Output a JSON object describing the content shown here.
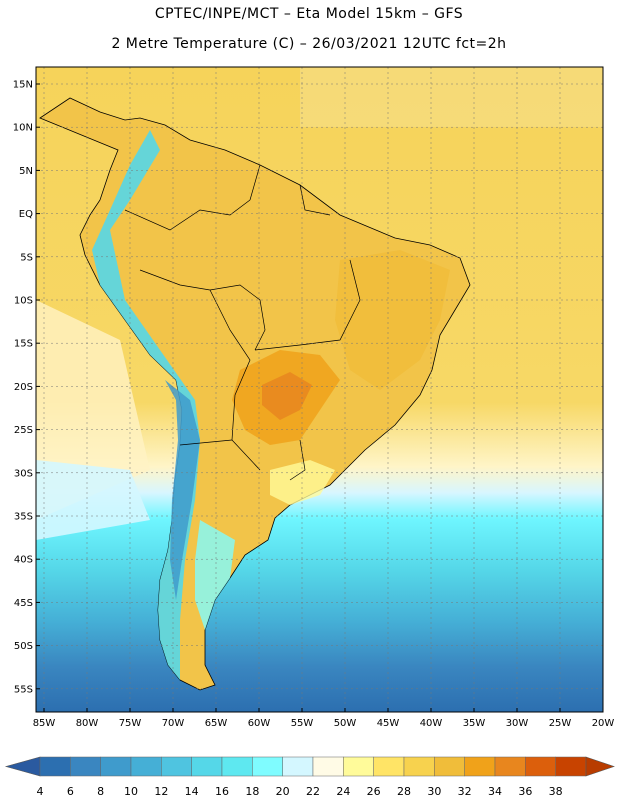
{
  "header": {
    "line1": "CPTEC/INPE/MCT –  Eta Model 15km – GFS",
    "line2": "2 Metre Temperature (C) – 26/03/2021 12UTC fct=2h"
  },
  "axes": {
    "lat_labels": [
      "15N",
      "10N",
      "5N",
      "EQ",
      "5S",
      "10S",
      "15S",
      "20S",
      "25S",
      "30S",
      "35S",
      "40S",
      "45S",
      "50S",
      "55S"
    ],
    "lon_labels": [
      "85W",
      "80W",
      "75W",
      "70W",
      "65W",
      "60W",
      "55W",
      "50W",
      "45W",
      "40W",
      "35W",
      "30W",
      "25W",
      "20W"
    ]
  },
  "colorbar": {
    "labels": [
      "4",
      "6",
      "8",
      "10",
      "12",
      "14",
      "16",
      "18",
      "20",
      "22",
      "24",
      "26",
      "28",
      "30",
      "32",
      "34",
      "36",
      "38"
    ],
    "colors": [
      "#2c6fb0",
      "#3a86c0",
      "#3f9bcc",
      "#45afd6",
      "#4fc4e0",
      "#55d7e8",
      "#5ee8f0",
      "#7ffcff",
      "#d4f7ff",
      "#fffbe6",
      "#fffb9a",
      "#ffe466",
      "#f7d24e",
      "#f0bd3a",
      "#f0a21a",
      "#e8861e",
      "#dc5f0c",
      "#c84300"
    ],
    "low_color": "#2a5aa0",
    "high_color": "#b83c00"
  },
  "map": {
    "ocean_warm": "#f6cf55",
    "ocean_cool": "#5fd4e6",
    "land_base": "#f2c449",
    "frame_color": "#000000"
  }
}
